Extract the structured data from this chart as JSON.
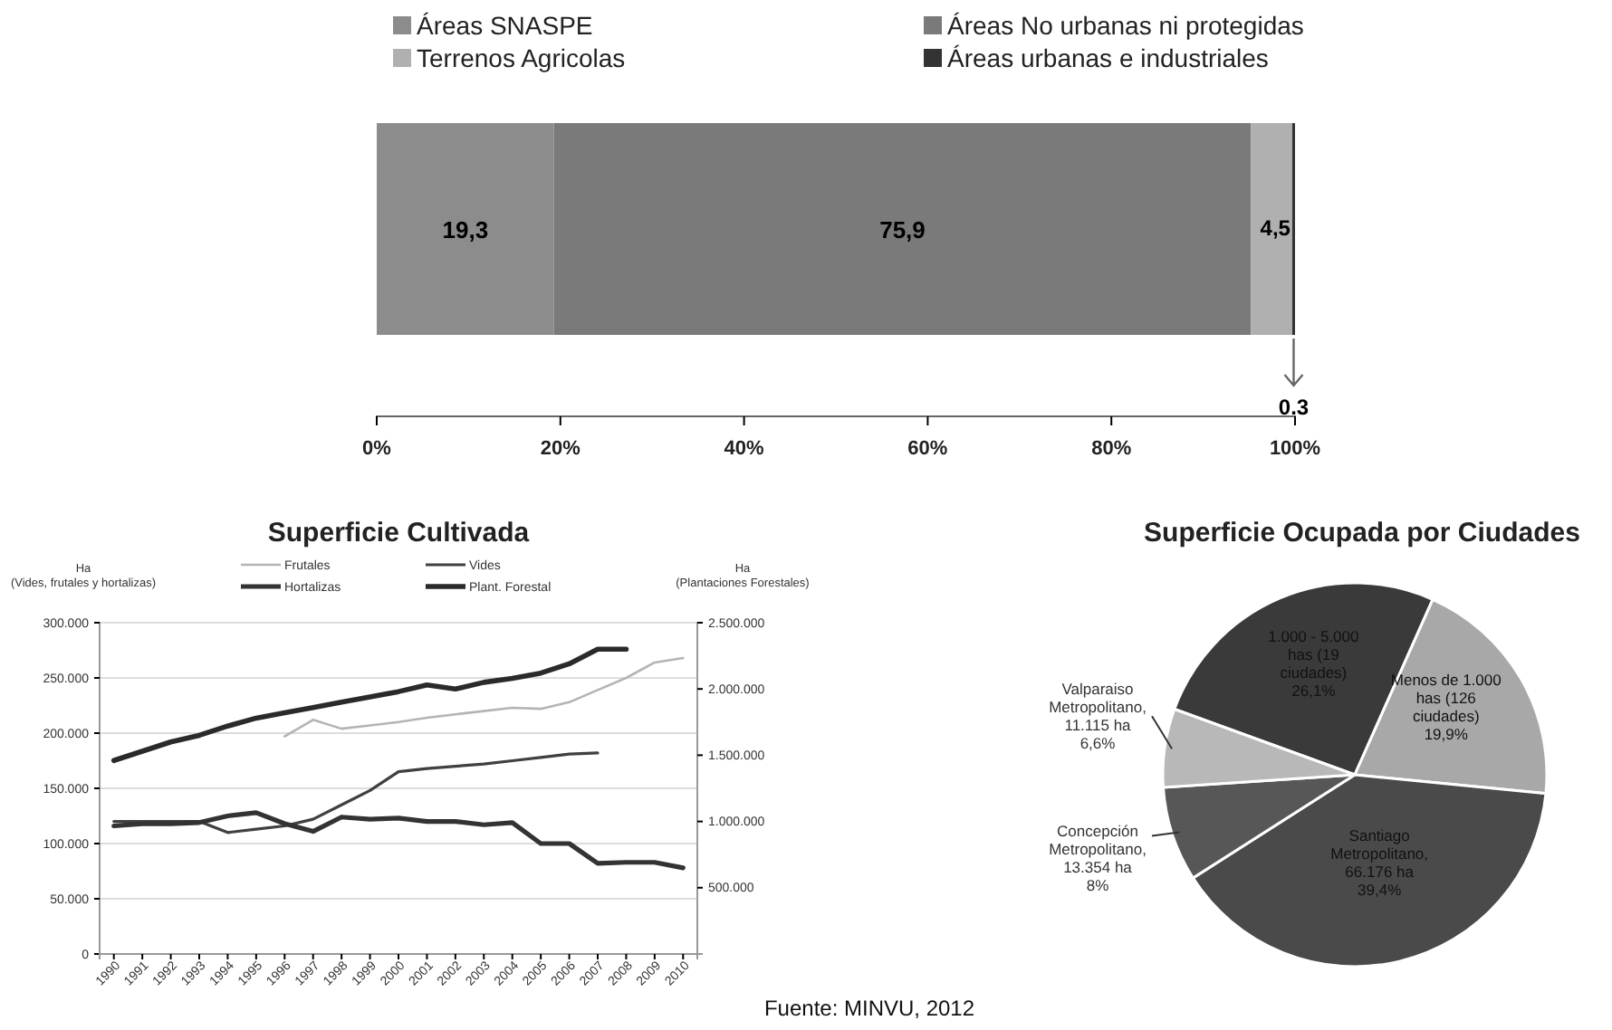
{
  "chart_data": [
    {
      "type": "bar",
      "orientation": "horizontal",
      "stacked": true,
      "legend": "top",
      "categories": [
        null
      ],
      "xlim": [
        0,
        100
      ],
      "xticks": [
        {
          "value": 0,
          "label": "0%"
        },
        {
          "value": 20,
          "label": "20%"
        },
        {
          "value": 40,
          "label": "40%"
        },
        {
          "value": 60,
          "label": "60%"
        },
        {
          "value": 80,
          "label": "80%"
        },
        {
          "value": 100,
          "label": "100%"
        }
      ],
      "series": [
        {
          "name": "Áreas SNASPE",
          "color": "#8c8c8c",
          "values": [
            19.3
          ],
          "value_labels": [
            "19,3"
          ]
        },
        {
          "name": "Áreas No urbanas ni protegidas",
          "color": "#7a7a7a",
          "values": [
            75.9
          ],
          "value_labels": [
            "75,9"
          ]
        },
        {
          "name": "Terrenos Agricolas",
          "color": "#b0b0b0",
          "values": [
            4.5
          ],
          "value_labels": [
            "4,5"
          ]
        },
        {
          "name": "Áreas urbanas e industriales",
          "color": "#333333",
          "values": [
            0.3
          ],
          "value_labels": [
            "0.3"
          ]
        }
      ]
    },
    {
      "type": "line",
      "title": "Superficie Cultivada",
      "ylabel": "Ha\n(Vides, frutales y hortalizas)",
      "y2label": "Ha\n(Plantaciones Forestales)",
      "legend": "top",
      "grid": "y",
      "categories": [
        "1990",
        "1991",
        "1992",
        "1993",
        "1994",
        "1995",
        "1996",
        "1997",
        "1998",
        "1999",
        "2000",
        "2001",
        "2002",
        "2003",
        "2004",
        "2005",
        "2006",
        "2007",
        "2008",
        "2009",
        "2010"
      ],
      "ylim": [
        0,
        300000
      ],
      "yticks": [
        0,
        {
          "value": 50000,
          "label": "50.000"
        },
        {
          "value": 100000,
          "label": "100.000"
        },
        {
          "value": 150000,
          "label": "150.000"
        },
        {
          "value": 200000,
          "label": "200.000"
        },
        {
          "value": 250000,
          "label": "250.000"
        },
        {
          "value": 300000,
          "label": "300.000"
        }
      ],
      "y2lim": [
        0,
        2500000
      ],
      "y2ticks": [
        {
          "value": 500000,
          "label": "500.000"
        },
        {
          "value": 1000000,
          "label": "1.000.000"
        },
        {
          "value": 1500000,
          "label": "1.500.000"
        },
        {
          "value": 2000000,
          "label": "2.000.000"
        },
        {
          "value": 2500000,
          "label": "2.500.000"
        }
      ],
      "series": [
        {
          "name": "Frutales",
          "color": "#b4b4b4",
          "values": [
            null,
            null,
            null,
            null,
            null,
            null,
            197000,
            212000,
            204000,
            207000,
            210000,
            214000,
            217000,
            220000,
            223000,
            222000,
            228000,
            239000,
            250000,
            264000,
            268000
          ]
        },
        {
          "name": "Vides",
          "color": "#404040",
          "values": [
            120000,
            120000,
            120000,
            120000,
            110000,
            113000,
            116000,
            122000,
            135000,
            148000,
            165000,
            168000,
            170000,
            172000,
            175000,
            178000,
            181000,
            182000,
            null,
            null,
            null
          ]
        },
        {
          "name": "Hortalizas",
          "color": "#333333",
          "values": [
            116000,
            118000,
            118000,
            119000,
            125000,
            128000,
            118000,
            111000,
            124000,
            122000,
            123000,
            120000,
            120000,
            117000,
            119000,
            100000,
            100000,
            82000,
            83000,
            83000,
            78000
          ]
        },
        {
          "name": "Plant. Forestal",
          "color": "#2a2a2a",
          "axis": "y2",
          "values": [
            1460000,
            1530000,
            1600000,
            1650000,
            1720000,
            1780000,
            1820000,
            1860000,
            1900000,
            1940000,
            1980000,
            2030000,
            2000000,
            2050000,
            2080000,
            2120000,
            2190000,
            2300000,
            2300000,
            null,
            null
          ]
        }
      ]
    },
    {
      "type": "pie",
      "title": "Superficie Ocupada por Ciudades",
      "categories": [
        "1.000 - 5.000 has (19 ciudades)",
        "Menos de 1.000 has (126 ciudades)",
        "Santiago Metropolitano, 66.176 ha",
        "Concepción Metropolitano, 13.354 ha",
        "Valparaiso Metropolitano, 11.115 ha"
      ],
      "values": [
        26.1,
        19.9,
        39.4,
        8,
        6.6
      ],
      "value_labels": [
        "26,1%",
        "19,9%",
        "39,4%",
        "8%",
        "6,6%"
      ],
      "colors": [
        "#3a3a3a",
        "#a8a8a8",
        "#4a4a4a",
        "#575757",
        "#b8b8b8"
      ],
      "annotations": [
        "Fuente: MINVU, 2012"
      ]
    }
  ]
}
